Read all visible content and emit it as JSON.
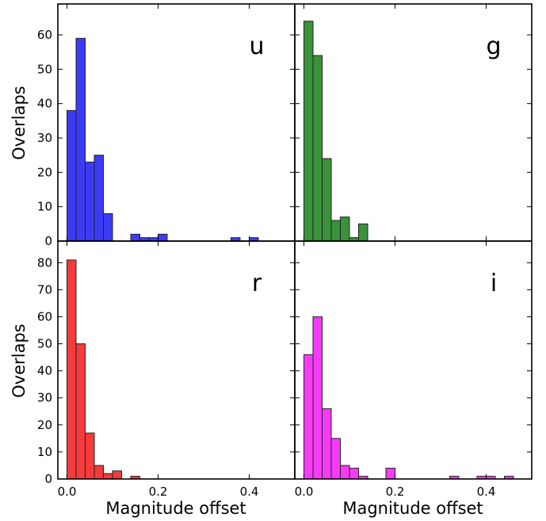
{
  "chart_data": [
    {
      "type": "bar",
      "panel_label": "u",
      "color": "#3b3bf5",
      "bin_width": 0.02,
      "bins": [
        {
          "x": 0.0,
          "value": 38
        },
        {
          "x": 0.02,
          "value": 59
        },
        {
          "x": 0.04,
          "value": 23
        },
        {
          "x": 0.06,
          "value": 25
        },
        {
          "x": 0.08,
          "value": 8
        },
        {
          "x": 0.14,
          "value": 2
        },
        {
          "x": 0.16,
          "value": 1
        },
        {
          "x": 0.18,
          "value": 1
        },
        {
          "x": 0.2,
          "value": 2
        },
        {
          "x": 0.36,
          "value": 1
        },
        {
          "x": 0.4,
          "value": 1
        }
      ],
      "ylabel": "Overlaps",
      "xlabel": "",
      "xlim": [
        -0.02,
        0.5
      ],
      "ylim": [
        0,
        69
      ],
      "yticks": [
        "0",
        "10",
        "20",
        "30",
        "40",
        "50",
        "60"
      ],
      "yticks_values": [
        0,
        10,
        20,
        30,
        40,
        50,
        60
      ],
      "xticks_values": [
        0.0,
        0.2,
        0.4
      ],
      "xticks": []
    },
    {
      "type": "bar",
      "panel_label": "g",
      "color": "#3a923a",
      "bin_width": 0.02,
      "bins": [
        {
          "x": 0.0,
          "value": 64
        },
        {
          "x": 0.02,
          "value": 54
        },
        {
          "x": 0.04,
          "value": 24
        },
        {
          "x": 0.06,
          "value": 6
        },
        {
          "x": 0.08,
          "value": 7
        },
        {
          "x": 0.1,
          "value": 1
        },
        {
          "x": 0.12,
          "value": 5
        }
      ],
      "ylabel": "",
      "xlabel": "",
      "xlim": [
        -0.02,
        0.5
      ],
      "ylim": [
        0,
        69
      ],
      "yticks": [],
      "yticks_values": [
        0,
        10,
        20,
        30,
        40,
        50,
        60
      ],
      "xticks_values": [
        0.0,
        0.2,
        0.4
      ],
      "xticks": []
    },
    {
      "type": "bar",
      "panel_label": "r",
      "color": "#f53b3b",
      "bin_width": 0.02,
      "bins": [
        {
          "x": 0.0,
          "value": 81
        },
        {
          "x": 0.02,
          "value": 50
        },
        {
          "x": 0.04,
          "value": 17
        },
        {
          "x": 0.06,
          "value": 5
        },
        {
          "x": 0.08,
          "value": 2
        },
        {
          "x": 0.1,
          "value": 3
        },
        {
          "x": 0.14,
          "value": 1
        }
      ],
      "ylabel": "Overlaps",
      "xlabel": "Magnitude offset",
      "xlim": [
        -0.02,
        0.5
      ],
      "ylim": [
        0,
        88
      ],
      "yticks": [
        "0",
        "10",
        "20",
        "30",
        "40",
        "50",
        "60",
        "70",
        "80"
      ],
      "yticks_values": [
        0,
        10,
        20,
        30,
        40,
        50,
        60,
        70,
        80
      ],
      "xticks_values": [
        0.0,
        0.2,
        0.4
      ],
      "xticks": [
        "0.0",
        "0.2",
        "0.4"
      ]
    },
    {
      "type": "bar",
      "panel_label": "i",
      "color": "#f53bf5",
      "bin_width": 0.02,
      "bins": [
        {
          "x": 0.0,
          "value": 46
        },
        {
          "x": 0.02,
          "value": 60
        },
        {
          "x": 0.04,
          "value": 26
        },
        {
          "x": 0.06,
          "value": 15
        },
        {
          "x": 0.08,
          "value": 5
        },
        {
          "x": 0.1,
          "value": 4
        },
        {
          "x": 0.12,
          "value": 1
        },
        {
          "x": 0.18,
          "value": 4
        },
        {
          "x": 0.32,
          "value": 1
        },
        {
          "x": 0.38,
          "value": 1
        },
        {
          "x": 0.4,
          "value": 1
        },
        {
          "x": 0.44,
          "value": 1
        }
      ],
      "ylabel": "",
      "xlabel": "Magnitude offset",
      "xlim": [
        -0.02,
        0.5
      ],
      "ylim": [
        0,
        88
      ],
      "yticks": [],
      "yticks_values": [
        0,
        10,
        20,
        30,
        40,
        50,
        60,
        70,
        80
      ],
      "xticks_values": [
        0.0,
        0.2,
        0.4
      ],
      "xticks": [
        "0.0",
        "0.2",
        "0.4"
      ]
    }
  ]
}
